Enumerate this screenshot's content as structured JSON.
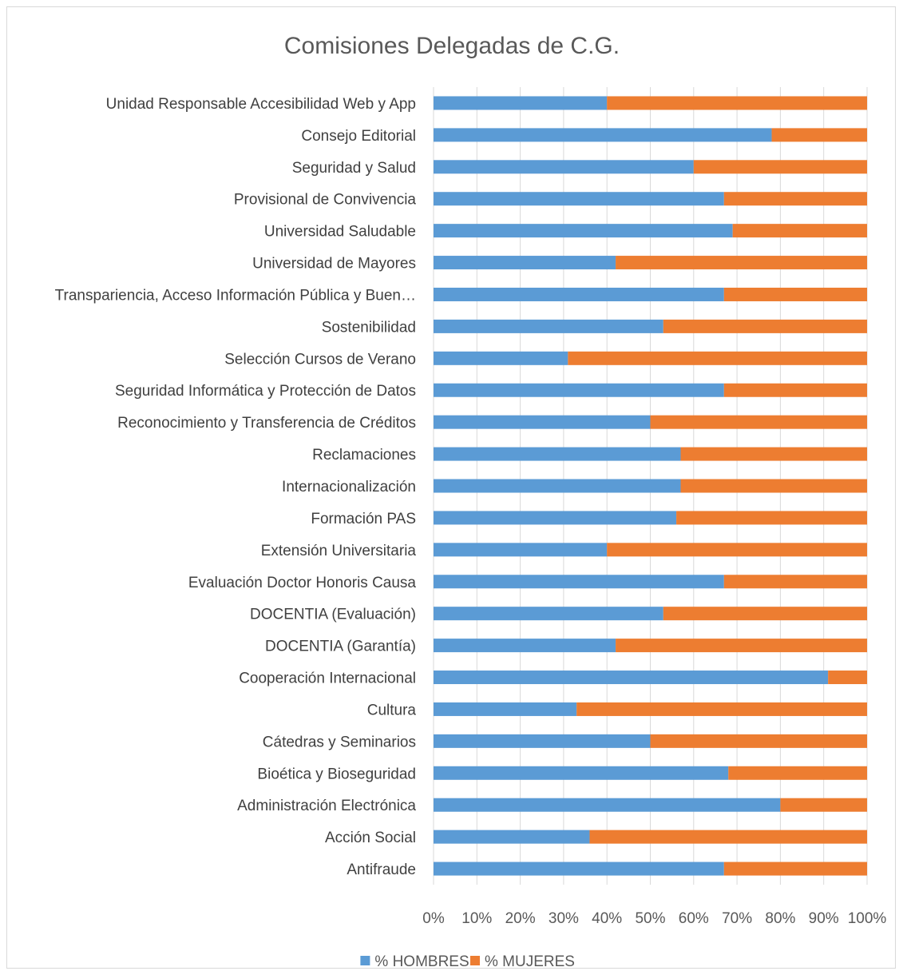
{
  "chart_data": {
    "type": "bar",
    "orientation": "horizontal",
    "stacked": "100%",
    "title": "Comisiones Delegadas de C.G.",
    "categories": [
      "Unidad Responsable Accesibilidad Web y App",
      "Consejo Editorial",
      "Seguridad y Salud",
      "Provisional de Convivencia",
      "Universidad Saludable",
      "Universidad de Mayores",
      "Transpariencia, Acceso Información Pública y Buen…",
      "Sostenibilidad",
      "Selección Cursos de Verano",
      "Seguridad Informática y Protección de Datos",
      "Reconocimiento y Transferencia de Créditos",
      "Reclamaciones",
      "Internacionalización",
      "Formación PAS",
      "Extensión Universitaria",
      "Evaluación Doctor Honoris Causa",
      "DOCENTIA (Evaluación)",
      "DOCENTIA (Garantía)",
      "Cooperación Internacional",
      "Cultura",
      "Cátedras y Seminarios",
      "Bioética y Bioseguridad",
      "Administración Electrónica",
      "Acción Social",
      "Antifraude"
    ],
    "series": [
      {
        "name": "% HOMBRES",
        "color": "#5b9bd5",
        "values": [
          40,
          78,
          60,
          67,
          69,
          42,
          67,
          53,
          31,
          67,
          50,
          57,
          57,
          56,
          40,
          67,
          53,
          42,
          91,
          33,
          50,
          68,
          80,
          36,
          67
        ]
      },
      {
        "name": "% MUJERES",
        "color": "#ed7d31",
        "values": [
          60,
          22,
          40,
          33,
          31,
          58,
          33,
          47,
          69,
          33,
          50,
          43,
          43,
          44,
          60,
          33,
          47,
          58,
          9,
          67,
          50,
          32,
          20,
          64,
          33
        ]
      }
    ],
    "x_ticks": [
      "0%",
      "10%",
      "20%",
      "30%",
      "40%",
      "50%",
      "60%",
      "70%",
      "80%",
      "90%",
      "100%"
    ],
    "xlim": [
      0,
      100
    ],
    "grid": "vertical",
    "legend": "bottom"
  }
}
